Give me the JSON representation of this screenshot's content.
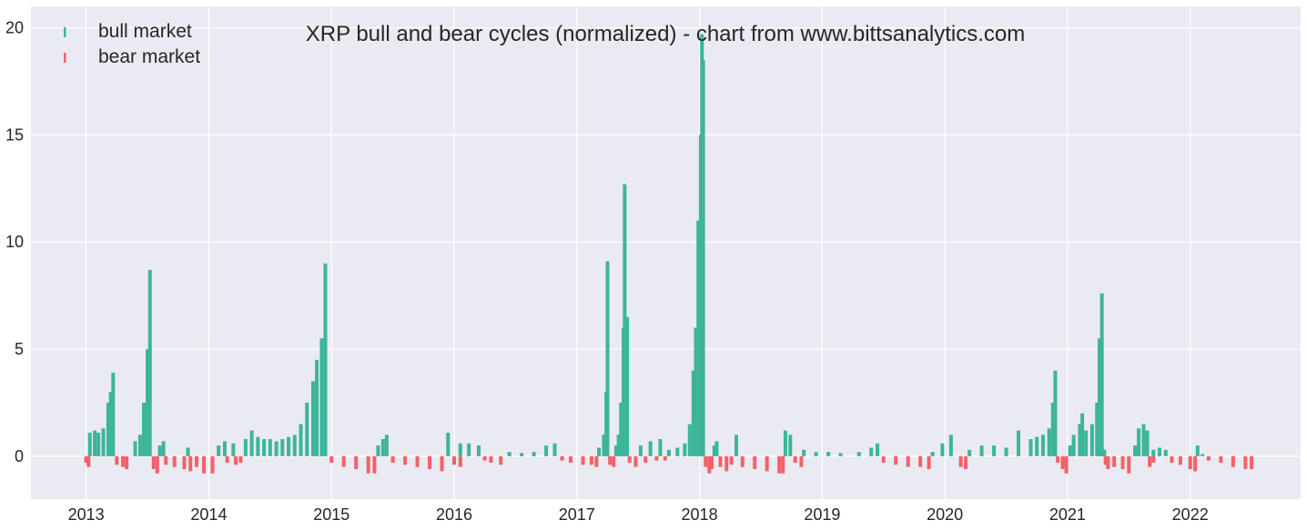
{
  "chart_data": {
    "type": "bar",
    "title": "XRP bull and bear cycles (normalized)  - chart from www.bittsanalytics.com",
    "xlabel": "",
    "ylabel": "",
    "xlim": [
      2012.55,
      2022.9
    ],
    "ylim": [
      -2,
      21
    ],
    "yticks": [
      "0",
      "5",
      "10",
      "15",
      "20"
    ],
    "xticks": [
      "2013",
      "2014",
      "2015",
      "2016",
      "2017",
      "2018",
      "2019",
      "2020",
      "2021",
      "2022"
    ],
    "grid": true,
    "legend": {
      "placement": "top-left",
      "entries": [
        "bull market",
        "bear market"
      ]
    },
    "colors": {
      "bull": "#3cb598",
      "bear": "#f26169",
      "background": "#eaeaf2",
      "grid": "#ffffff",
      "text": "#262626"
    },
    "series": [
      {
        "name": "bull market",
        "points": [
          [
            2013.03,
            1.1
          ],
          [
            2013.07,
            1.2
          ],
          [
            2013.1,
            1.1
          ],
          [
            2013.14,
            1.3
          ],
          [
            2013.18,
            2.5
          ],
          [
            2013.2,
            3.0
          ],
          [
            2013.22,
            3.9
          ],
          [
            2013.4,
            0.7
          ],
          [
            2013.44,
            1.0
          ],
          [
            2013.47,
            2.5
          ],
          [
            2013.5,
            5.0
          ],
          [
            2013.52,
            8.7
          ],
          [
            2013.6,
            0.5
          ],
          [
            2013.63,
            0.7
          ],
          [
            2013.83,
            0.4
          ],
          [
            2014.08,
            0.5
          ],
          [
            2014.13,
            0.7
          ],
          [
            2014.2,
            0.6
          ],
          [
            2014.3,
            0.8
          ],
          [
            2014.35,
            1.2
          ],
          [
            2014.4,
            0.9
          ],
          [
            2014.45,
            0.8
          ],
          [
            2014.5,
            0.8
          ],
          [
            2014.55,
            0.7
          ],
          [
            2014.6,
            0.8
          ],
          [
            2014.65,
            0.9
          ],
          [
            2014.7,
            1.0
          ],
          [
            2014.75,
            1.5
          ],
          [
            2014.8,
            2.5
          ],
          [
            2014.85,
            3.5
          ],
          [
            2014.88,
            4.5
          ],
          [
            2014.92,
            5.5
          ],
          [
            2014.95,
            9.0
          ],
          [
            2015.38,
            0.5
          ],
          [
            2015.42,
            0.8
          ],
          [
            2015.45,
            1.0
          ],
          [
            2015.95,
            1.1
          ],
          [
            2016.05,
            0.6
          ],
          [
            2016.12,
            0.6
          ],
          [
            2016.2,
            0.5
          ],
          [
            2016.45,
            0.2
          ],
          [
            2016.55,
            0.15
          ],
          [
            2016.65,
            0.2
          ],
          [
            2016.75,
            0.5
          ],
          [
            2016.82,
            0.6
          ],
          [
            2017.18,
            0.4
          ],
          [
            2017.22,
            1.0
          ],
          [
            2017.24,
            3.0
          ],
          [
            2017.25,
            9.1
          ],
          [
            2017.32,
            0.5
          ],
          [
            2017.34,
            1.0
          ],
          [
            2017.36,
            2.5
          ],
          [
            2017.38,
            6.0
          ],
          [
            2017.39,
            12.7
          ],
          [
            2017.41,
            6.5
          ],
          [
            2017.52,
            0.5
          ],
          [
            2017.6,
            0.7
          ],
          [
            2017.68,
            0.8
          ],
          [
            2017.75,
            0.3
          ],
          [
            2017.82,
            0.4
          ],
          [
            2017.88,
            0.6
          ],
          [
            2017.92,
            1.5
          ],
          [
            2017.95,
            4.0
          ],
          [
            2017.97,
            6.0
          ],
          [
            2017.99,
            11.0
          ],
          [
            2018.01,
            15.0
          ],
          [
            2018.02,
            19.7
          ],
          [
            2018.03,
            18.5
          ],
          [
            2018.12,
            0.5
          ],
          [
            2018.14,
            0.7
          ],
          [
            2018.3,
            1.0
          ],
          [
            2018.7,
            1.2
          ],
          [
            2018.74,
            1.0
          ],
          [
            2018.85,
            0.3
          ],
          [
            2018.95,
            0.2
          ],
          [
            2019.05,
            0.2
          ],
          [
            2019.15,
            0.15
          ],
          [
            2019.3,
            0.2
          ],
          [
            2019.4,
            0.4
          ],
          [
            2019.45,
            0.6
          ],
          [
            2019.9,
            0.2
          ],
          [
            2019.98,
            0.6
          ],
          [
            2020.05,
            1.0
          ],
          [
            2020.2,
            0.3
          ],
          [
            2020.3,
            0.5
          ],
          [
            2020.4,
            0.5
          ],
          [
            2020.5,
            0.4
          ],
          [
            2020.6,
            1.2
          ],
          [
            2020.7,
            0.8
          ],
          [
            2020.75,
            0.9
          ],
          [
            2020.8,
            1.0
          ],
          [
            2020.85,
            1.3
          ],
          [
            2020.88,
            2.5
          ],
          [
            2020.9,
            4.0
          ],
          [
            2021.02,
            0.5
          ],
          [
            2021.05,
            1.0
          ],
          [
            2021.1,
            1.5
          ],
          [
            2021.12,
            2.0
          ],
          [
            2021.15,
            1.2
          ],
          [
            2021.2,
            1.5
          ],
          [
            2021.24,
            2.5
          ],
          [
            2021.26,
            5.5
          ],
          [
            2021.28,
            7.6
          ],
          [
            2021.3,
            0.3
          ],
          [
            2021.55,
            0.5
          ],
          [
            2021.58,
            1.3
          ],
          [
            2021.62,
            1.5
          ],
          [
            2021.65,
            1.2
          ],
          [
            2021.7,
            0.3
          ],
          [
            2021.75,
            0.4
          ],
          [
            2021.8,
            0.3
          ],
          [
            2022.06,
            0.5
          ],
          [
            2022.1,
            0.1
          ]
        ]
      },
      {
        "name": "bear market",
        "points": [
          [
            2013.0,
            -0.3
          ],
          [
            2013.02,
            -0.5
          ],
          [
            2013.25,
            -0.4
          ],
          [
            2013.3,
            -0.5
          ],
          [
            2013.33,
            -0.6
          ],
          [
            2013.55,
            -0.6
          ],
          [
            2013.58,
            -0.8
          ],
          [
            2013.65,
            -0.4
          ],
          [
            2013.72,
            -0.5
          ],
          [
            2013.8,
            -0.6
          ],
          [
            2013.85,
            -0.7
          ],
          [
            2013.9,
            -0.5
          ],
          [
            2013.96,
            -0.8
          ],
          [
            2014.03,
            -0.8
          ],
          [
            2014.15,
            -0.3
          ],
          [
            2014.22,
            -0.4
          ],
          [
            2014.26,
            -0.3
          ],
          [
            2015.0,
            -0.3
          ],
          [
            2015.1,
            -0.5
          ],
          [
            2015.2,
            -0.6
          ],
          [
            2015.3,
            -0.8
          ],
          [
            2015.35,
            -0.8
          ],
          [
            2015.5,
            -0.3
          ],
          [
            2015.6,
            -0.4
          ],
          [
            2015.7,
            -0.5
          ],
          [
            2015.8,
            -0.6
          ],
          [
            2015.9,
            -0.7
          ],
          [
            2016.0,
            -0.4
          ],
          [
            2016.05,
            -0.5
          ],
          [
            2016.25,
            -0.2
          ],
          [
            2016.3,
            -0.3
          ],
          [
            2016.38,
            -0.4
          ],
          [
            2016.88,
            -0.2
          ],
          [
            2016.95,
            -0.3
          ],
          [
            2017.05,
            -0.4
          ],
          [
            2017.12,
            -0.4
          ],
          [
            2017.16,
            -0.5
          ],
          [
            2017.27,
            -0.4
          ],
          [
            2017.3,
            -0.5
          ],
          [
            2017.43,
            -0.3
          ],
          [
            2017.48,
            -0.5
          ],
          [
            2017.56,
            -0.3
          ],
          [
            2017.65,
            -0.2
          ],
          [
            2017.72,
            -0.2
          ],
          [
            2018.05,
            -0.5
          ],
          [
            2018.08,
            -0.8
          ],
          [
            2018.1,
            -0.6
          ],
          [
            2018.17,
            -0.5
          ],
          [
            2018.22,
            -0.7
          ],
          [
            2018.26,
            -0.4
          ],
          [
            2018.35,
            -0.5
          ],
          [
            2018.45,
            -0.6
          ],
          [
            2018.55,
            -0.7
          ],
          [
            2018.65,
            -0.8
          ],
          [
            2018.68,
            -0.8
          ],
          [
            2018.78,
            -0.3
          ],
          [
            2018.83,
            -0.5
          ],
          [
            2019.5,
            -0.3
          ],
          [
            2019.6,
            -0.4
          ],
          [
            2019.7,
            -0.5
          ],
          [
            2019.8,
            -0.5
          ],
          [
            2019.87,
            -0.6
          ],
          [
            2020.13,
            -0.5
          ],
          [
            2020.17,
            -0.6
          ],
          [
            2020.92,
            -0.3
          ],
          [
            2020.96,
            -0.6
          ],
          [
            2020.99,
            -0.8
          ],
          [
            2021.31,
            -0.4
          ],
          [
            2021.33,
            -0.6
          ],
          [
            2021.38,
            -0.5
          ],
          [
            2021.45,
            -0.6
          ],
          [
            2021.5,
            -0.8
          ],
          [
            2021.67,
            -0.5
          ],
          [
            2021.7,
            -0.3
          ],
          [
            2021.85,
            -0.3
          ],
          [
            2021.92,
            -0.4
          ],
          [
            2022.0,
            -0.6
          ],
          [
            2022.04,
            -0.7
          ],
          [
            2022.15,
            -0.2
          ],
          [
            2022.25,
            -0.3
          ],
          [
            2022.35,
            -0.5
          ],
          [
            2022.45,
            -0.6
          ],
          [
            2022.5,
            -0.6
          ]
        ]
      }
    ]
  }
}
